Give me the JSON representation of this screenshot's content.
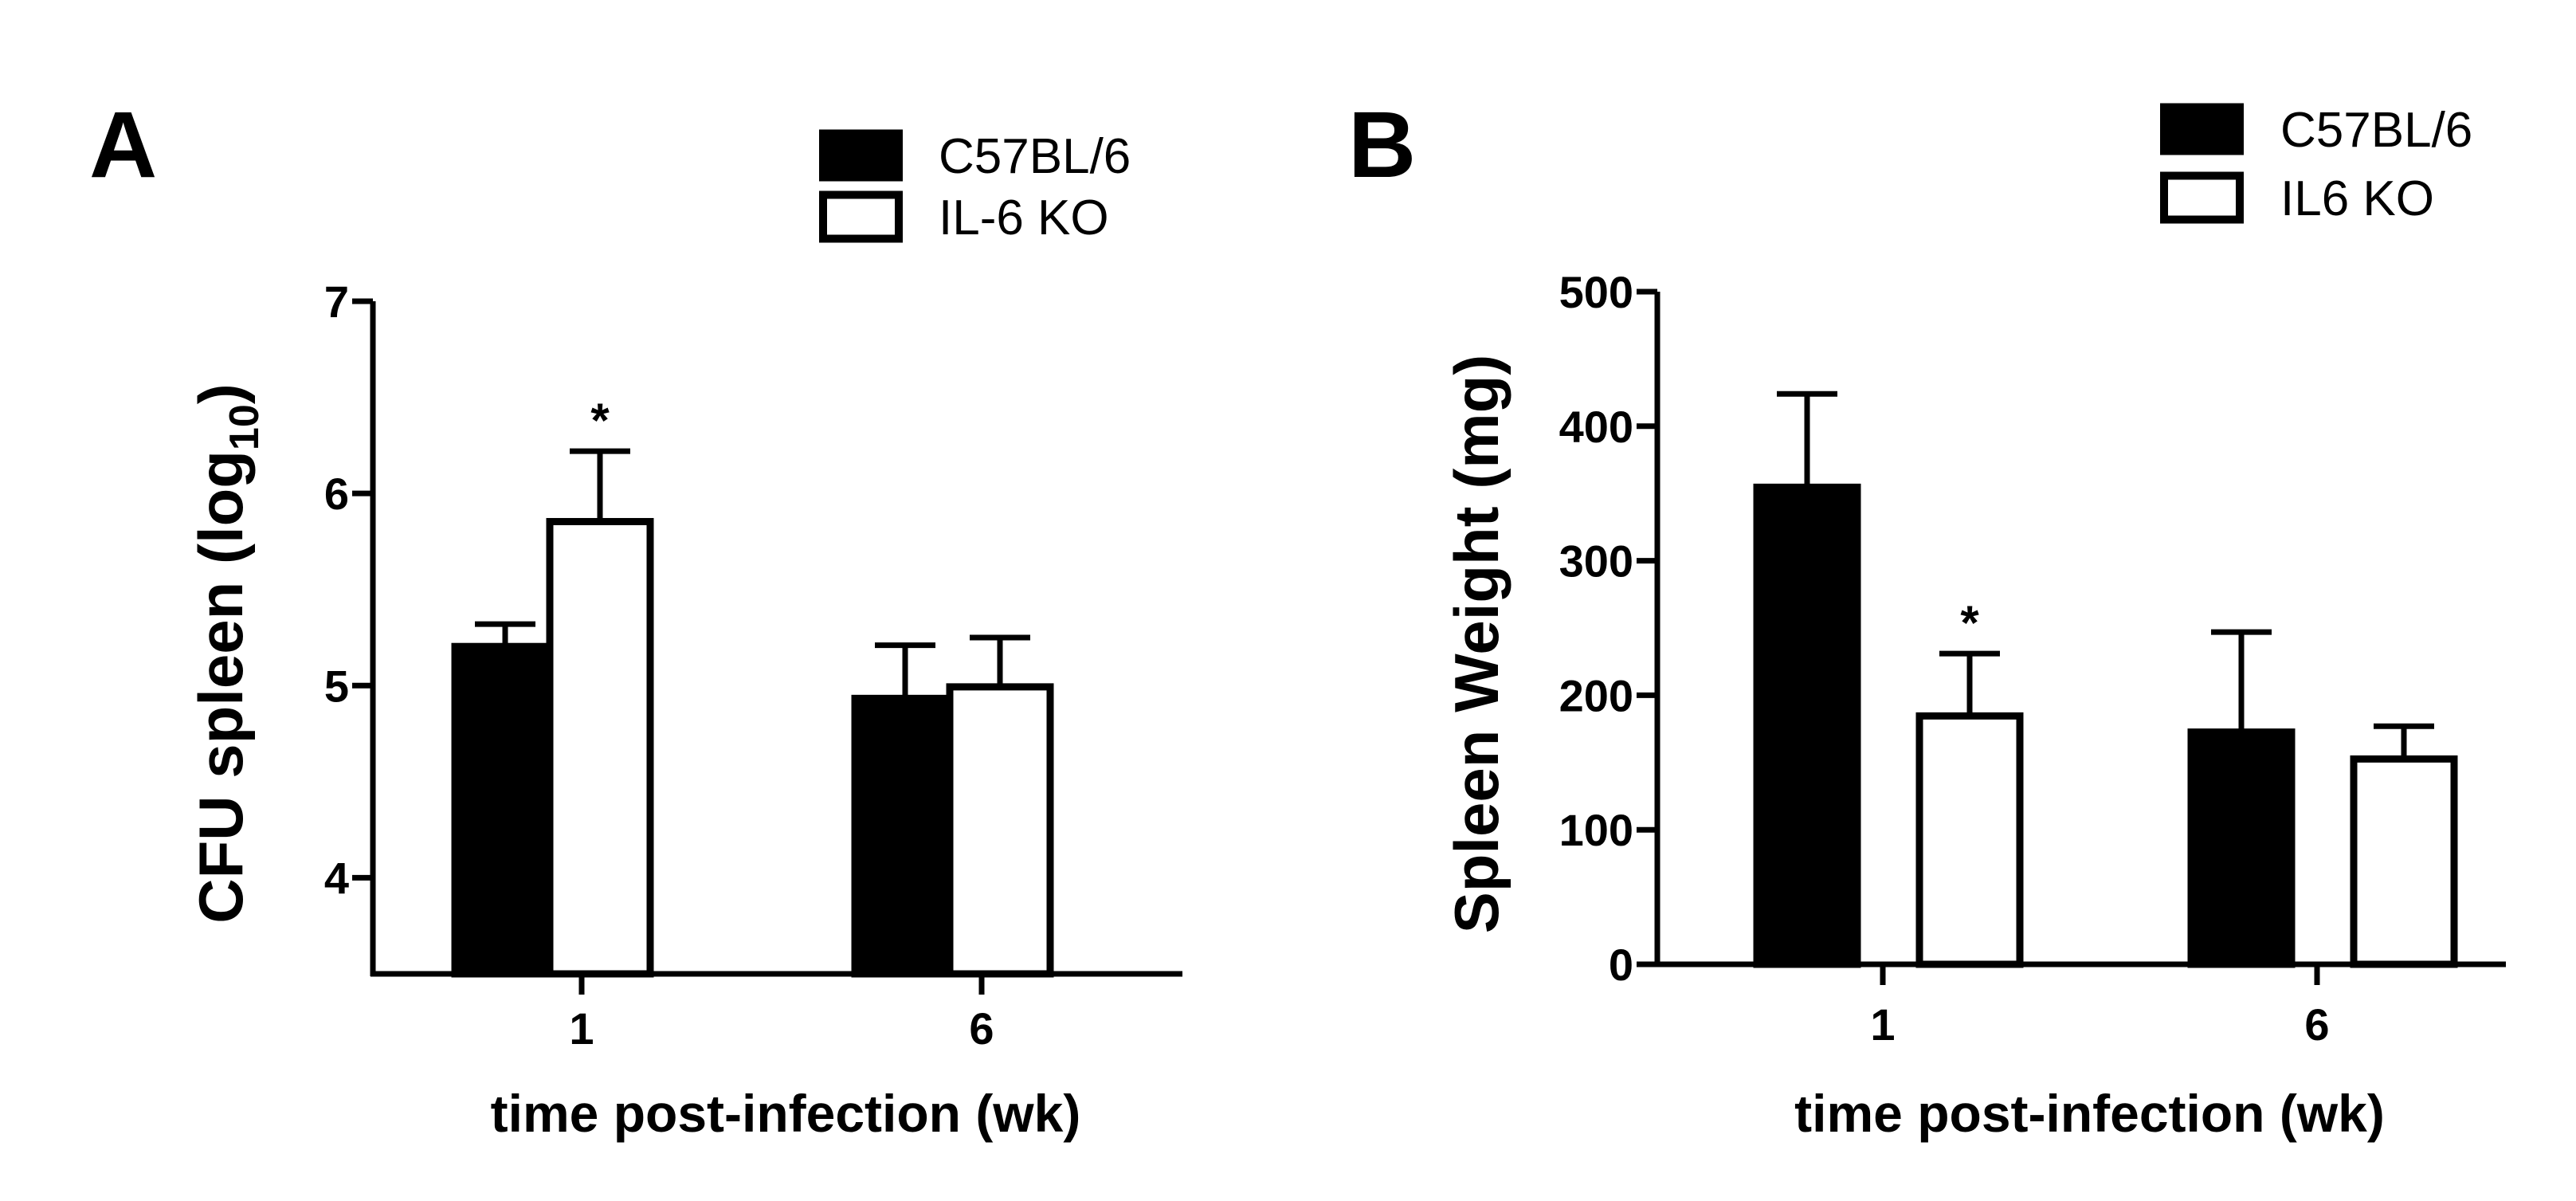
{
  "chart_data": [
    {
      "type": "bar",
      "panel": "A",
      "title": "",
      "categories": [
        "1",
        "6"
      ],
      "series": [
        {
          "name": "C57BL/6",
          "fill": "#000000",
          "values": [
            5.22,
            4.95
          ],
          "errors": [
            0.1,
            0.26
          ]
        },
        {
          "name": "IL-6 KO",
          "fill": "#ffffff",
          "values": [
            5.87,
            5.01
          ],
          "errors": [
            0.35,
            0.24
          ]
        }
      ],
      "significance": [
        {
          "category": "1",
          "series": "IL-6 KO",
          "label": "*"
        }
      ],
      "xlabel": "time post-infection (wk)",
      "ylabel": "CFU spleen (log",
      "ylabel_subscript": "10",
      "ylabel_close": ")",
      "ylim": [
        3.5,
        7
      ],
      "yticks": [
        4,
        5,
        6,
        7
      ],
      "legend": [
        "C57BL/6",
        "IL-6 KO"
      ],
      "legend_position": "top-right"
    },
    {
      "type": "bar",
      "panel": "B",
      "title": "",
      "categories": [
        "1",
        "6"
      ],
      "series": [
        {
          "name": "C57BL/6",
          "fill": "#000000",
          "values": [
            357,
            175
          ],
          "errors": [
            67,
            72
          ]
        },
        {
          "name": "IL6 KO",
          "fill": "#ffffff",
          "values": [
            187,
            155
          ],
          "errors": [
            44,
            22
          ]
        }
      ],
      "significance": [
        {
          "category": "1",
          "series": "IL6 KO",
          "label": "*"
        }
      ],
      "xlabel": "time post-infection (wk)",
      "ylabel": "Spleen Weight (mg)",
      "ylim": [
        0,
        500
      ],
      "yticks": [
        0,
        100,
        200,
        300,
        400,
        500
      ],
      "legend": [
        "C57BL/6",
        "IL6 KO"
      ],
      "legend_position": "top-right"
    }
  ],
  "colors": {
    "dark_bar": "#000000",
    "light_bar": "#ffffff",
    "stroke": "#000000"
  }
}
